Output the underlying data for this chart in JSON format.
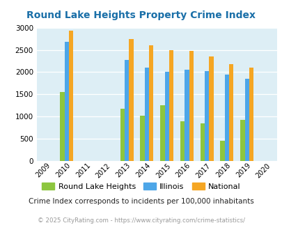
{
  "title": "Round Lake Heights Property Crime Index",
  "years": [
    2009,
    2010,
    2011,
    2012,
    2013,
    2014,
    2015,
    2016,
    2017,
    2018,
    2019,
    2020
  ],
  "rlh": [
    0,
    1550,
    0,
    0,
    1175,
    1025,
    1250,
    900,
    850,
    450,
    925,
    0
  ],
  "illinois": [
    0,
    2675,
    0,
    0,
    2275,
    2100,
    2000,
    2050,
    2025,
    1950,
    1850,
    0
  ],
  "national": [
    0,
    2925,
    0,
    0,
    2750,
    2600,
    2500,
    2475,
    2350,
    2175,
    2100,
    0
  ],
  "rlh_color": "#8dc63f",
  "illinois_color": "#4da6e8",
  "national_color": "#f5a623",
  "bg_color": "#ddeef5",
  "ylim": [
    0,
    3000
  ],
  "yticks": [
    0,
    500,
    1000,
    1500,
    2000,
    2500,
    3000
  ],
  "subtitle": "Crime Index corresponds to incidents per 100,000 inhabitants",
  "footer": "© 2025 CityRating.com - https://www.cityrating.com/crime-statistics/",
  "legend_labels": [
    "Round Lake Heights",
    "Illinois",
    "National"
  ]
}
